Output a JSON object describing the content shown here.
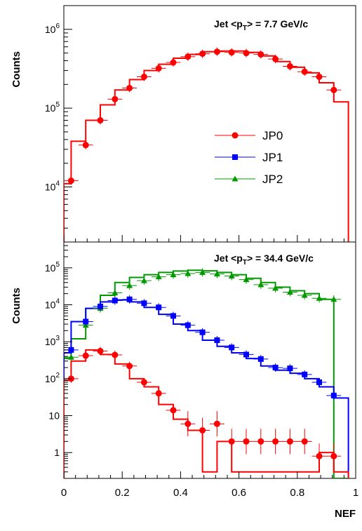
{
  "chart_data": [
    {
      "type": "scatter",
      "title": "Jet <p_T> = 7.7 GeV/c",
      "title_parts": {
        "prefix": "Jet <p",
        "sub": "T",
        "suffix": "> = 7.7 GeV/c"
      },
      "xlabel": "",
      "ylabel": "Counts",
      "xlim": [
        0,
        1
      ],
      "ylim": [
        2000,
        2000000
      ],
      "yscale": "log",
      "ytick_labels": [
        "10^4",
        "10^5",
        "10^6"
      ],
      "legend": {
        "placement": "center-right",
        "entries": [
          {
            "label": "JP0",
            "color": "#ff0000",
            "marker": "circle"
          },
          {
            "label": "JP1",
            "color": "#0000ff",
            "marker": "square"
          },
          {
            "label": "JP2",
            "color": "#009900",
            "marker": "triangle"
          }
        ]
      },
      "series": [
        {
          "name": "JP0",
          "color": "#ff0000",
          "marker": "circle",
          "hist_edges": [
            0,
            0.025,
            0.075,
            0.125,
            0.175,
            0.225,
            0.275,
            0.325,
            0.375,
            0.425,
            0.475,
            0.525,
            0.575,
            0.625,
            0.675,
            0.725,
            0.775,
            0.825,
            0.875,
            0.925,
            0.975
          ],
          "hist_values": [
            11000,
            38000,
            70000,
            110000,
            170000,
            230000,
            300000,
            360000,
            430000,
            480000,
            520000,
            530000,
            530000,
            510000,
            460000,
            390000,
            330000,
            280000,
            210000,
            120000
          ],
          "x": [
            0.025,
            0.075,
            0.125,
            0.175,
            0.225,
            0.275,
            0.325,
            0.375,
            0.425,
            0.475,
            0.525,
            0.575,
            0.625,
            0.675,
            0.725,
            0.775,
            0.825,
            0.875,
            0.925
          ],
          "y": [
            12000,
            34000,
            70000,
            130000,
            180000,
            250000,
            320000,
            380000,
            450000,
            490000,
            520000,
            510000,
            500000,
            480000,
            420000,
            340000,
            290000,
            250000,
            170000
          ]
        }
      ]
    },
    {
      "type": "scatter",
      "title": "Jet <p_T> = 34.4 GeV/c",
      "title_parts": {
        "prefix": "Jet <p",
        "sub": "T",
        "suffix": "> = 34.4 GeV/c"
      },
      "xlabel": "NEF",
      "ylabel": "Counts",
      "xlim": [
        0,
        1
      ],
      "ylim": [
        0.2,
        500000
      ],
      "yscale": "log",
      "xtick_labels": [
        "0",
        "0.2",
        "0.4",
        "0.6",
        "0.8",
        "1"
      ],
      "ytick_labels": [
        "1",
        "10",
        "10^2",
        "10^3",
        "10^4",
        "10^5"
      ],
      "series": [
        {
          "name": "JP2",
          "color": "#009900",
          "marker": "triangle",
          "hist_edges": [
            0,
            0.025,
            0.075,
            0.125,
            0.175,
            0.225,
            0.275,
            0.325,
            0.375,
            0.425,
            0.475,
            0.525,
            0.575,
            0.625,
            0.675,
            0.725,
            0.775,
            0.825,
            0.875,
            0.925,
            0.975
          ],
          "hist_values": [
            350,
            1200,
            8000,
            18000,
            40000,
            55000,
            65000,
            75000,
            82000,
            86000,
            83000,
            75000,
            65000,
            52000,
            40000,
            30000,
            24000,
            20000,
            14000,
            0
          ],
          "x": [
            0.025,
            0.075,
            0.125,
            0.175,
            0.225,
            0.275,
            0.325,
            0.375,
            0.425,
            0.475,
            0.525,
            0.575,
            0.625,
            0.675,
            0.725,
            0.775,
            0.825,
            0.875,
            0.925
          ],
          "y": [
            380,
            2800,
            8000,
            21000,
            33000,
            45000,
            57000,
            65000,
            70000,
            75000,
            68000,
            60000,
            48000,
            35000,
            28000,
            22000,
            18000,
            15000,
            14000
          ]
        },
        {
          "name": "JP1",
          "color": "#0000ff",
          "marker": "square",
          "hist_edges": [
            0,
            0.025,
            0.075,
            0.125,
            0.175,
            0.225,
            0.275,
            0.325,
            0.375,
            0.425,
            0.475,
            0.525,
            0.575,
            0.625,
            0.675,
            0.725,
            0.775,
            0.825,
            0.875,
            0.925,
            0.975
          ],
          "hist_values": [
            500,
            3500,
            8000,
            12000,
            13500,
            12000,
            8500,
            5500,
            3000,
            2000,
            1100,
            750,
            500,
            350,
            220,
            170,
            140,
            100,
            60,
            30
          ],
          "x": [
            0.025,
            0.075,
            0.125,
            0.175,
            0.225,
            0.275,
            0.325,
            0.375,
            0.425,
            0.475,
            0.525,
            0.575,
            0.625,
            0.675,
            0.725,
            0.775,
            0.825,
            0.875,
            0.925
          ],
          "y": [
            600,
            3500,
            9000,
            13000,
            14000,
            11000,
            8500,
            5000,
            2800,
            1800,
            1100,
            700,
            450,
            340,
            200,
            190,
            130,
            80,
            35
          ]
        },
        {
          "name": "JP0",
          "color": "#ff0000",
          "marker": "circle",
          "hist_edges": [
            0,
            0.025,
            0.075,
            0.125,
            0.175,
            0.225,
            0.275,
            0.325,
            0.375,
            0.425,
            0.475,
            0.525,
            0.575,
            0.625,
            0.675,
            0.725,
            0.775,
            0.825,
            0.875,
            0.925,
            0.975
          ],
          "hist_values": [
            90,
            300,
            600,
            450,
            250,
            100,
            60,
            20,
            8,
            4,
            0.3,
            2,
            0.3,
            0.3,
            0.3,
            0.3,
            0.3,
            0.3,
            1,
            0.3
          ],
          "x": [
            0.025,
            0.075,
            0.125,
            0.175,
            0.225,
            0.275,
            0.325,
            0.375,
            0.425,
            0.475,
            0.525,
            0.575,
            0.625,
            0.675,
            0.725,
            0.775,
            0.825,
            0.875,
            0.925
          ],
          "y": [
            100,
            420,
            560,
            440,
            220,
            80,
            40,
            14,
            6,
            4,
            6,
            2,
            2,
            2,
            2,
            2,
            2,
            0.8,
            0.8
          ]
        }
      ]
    }
  ]
}
